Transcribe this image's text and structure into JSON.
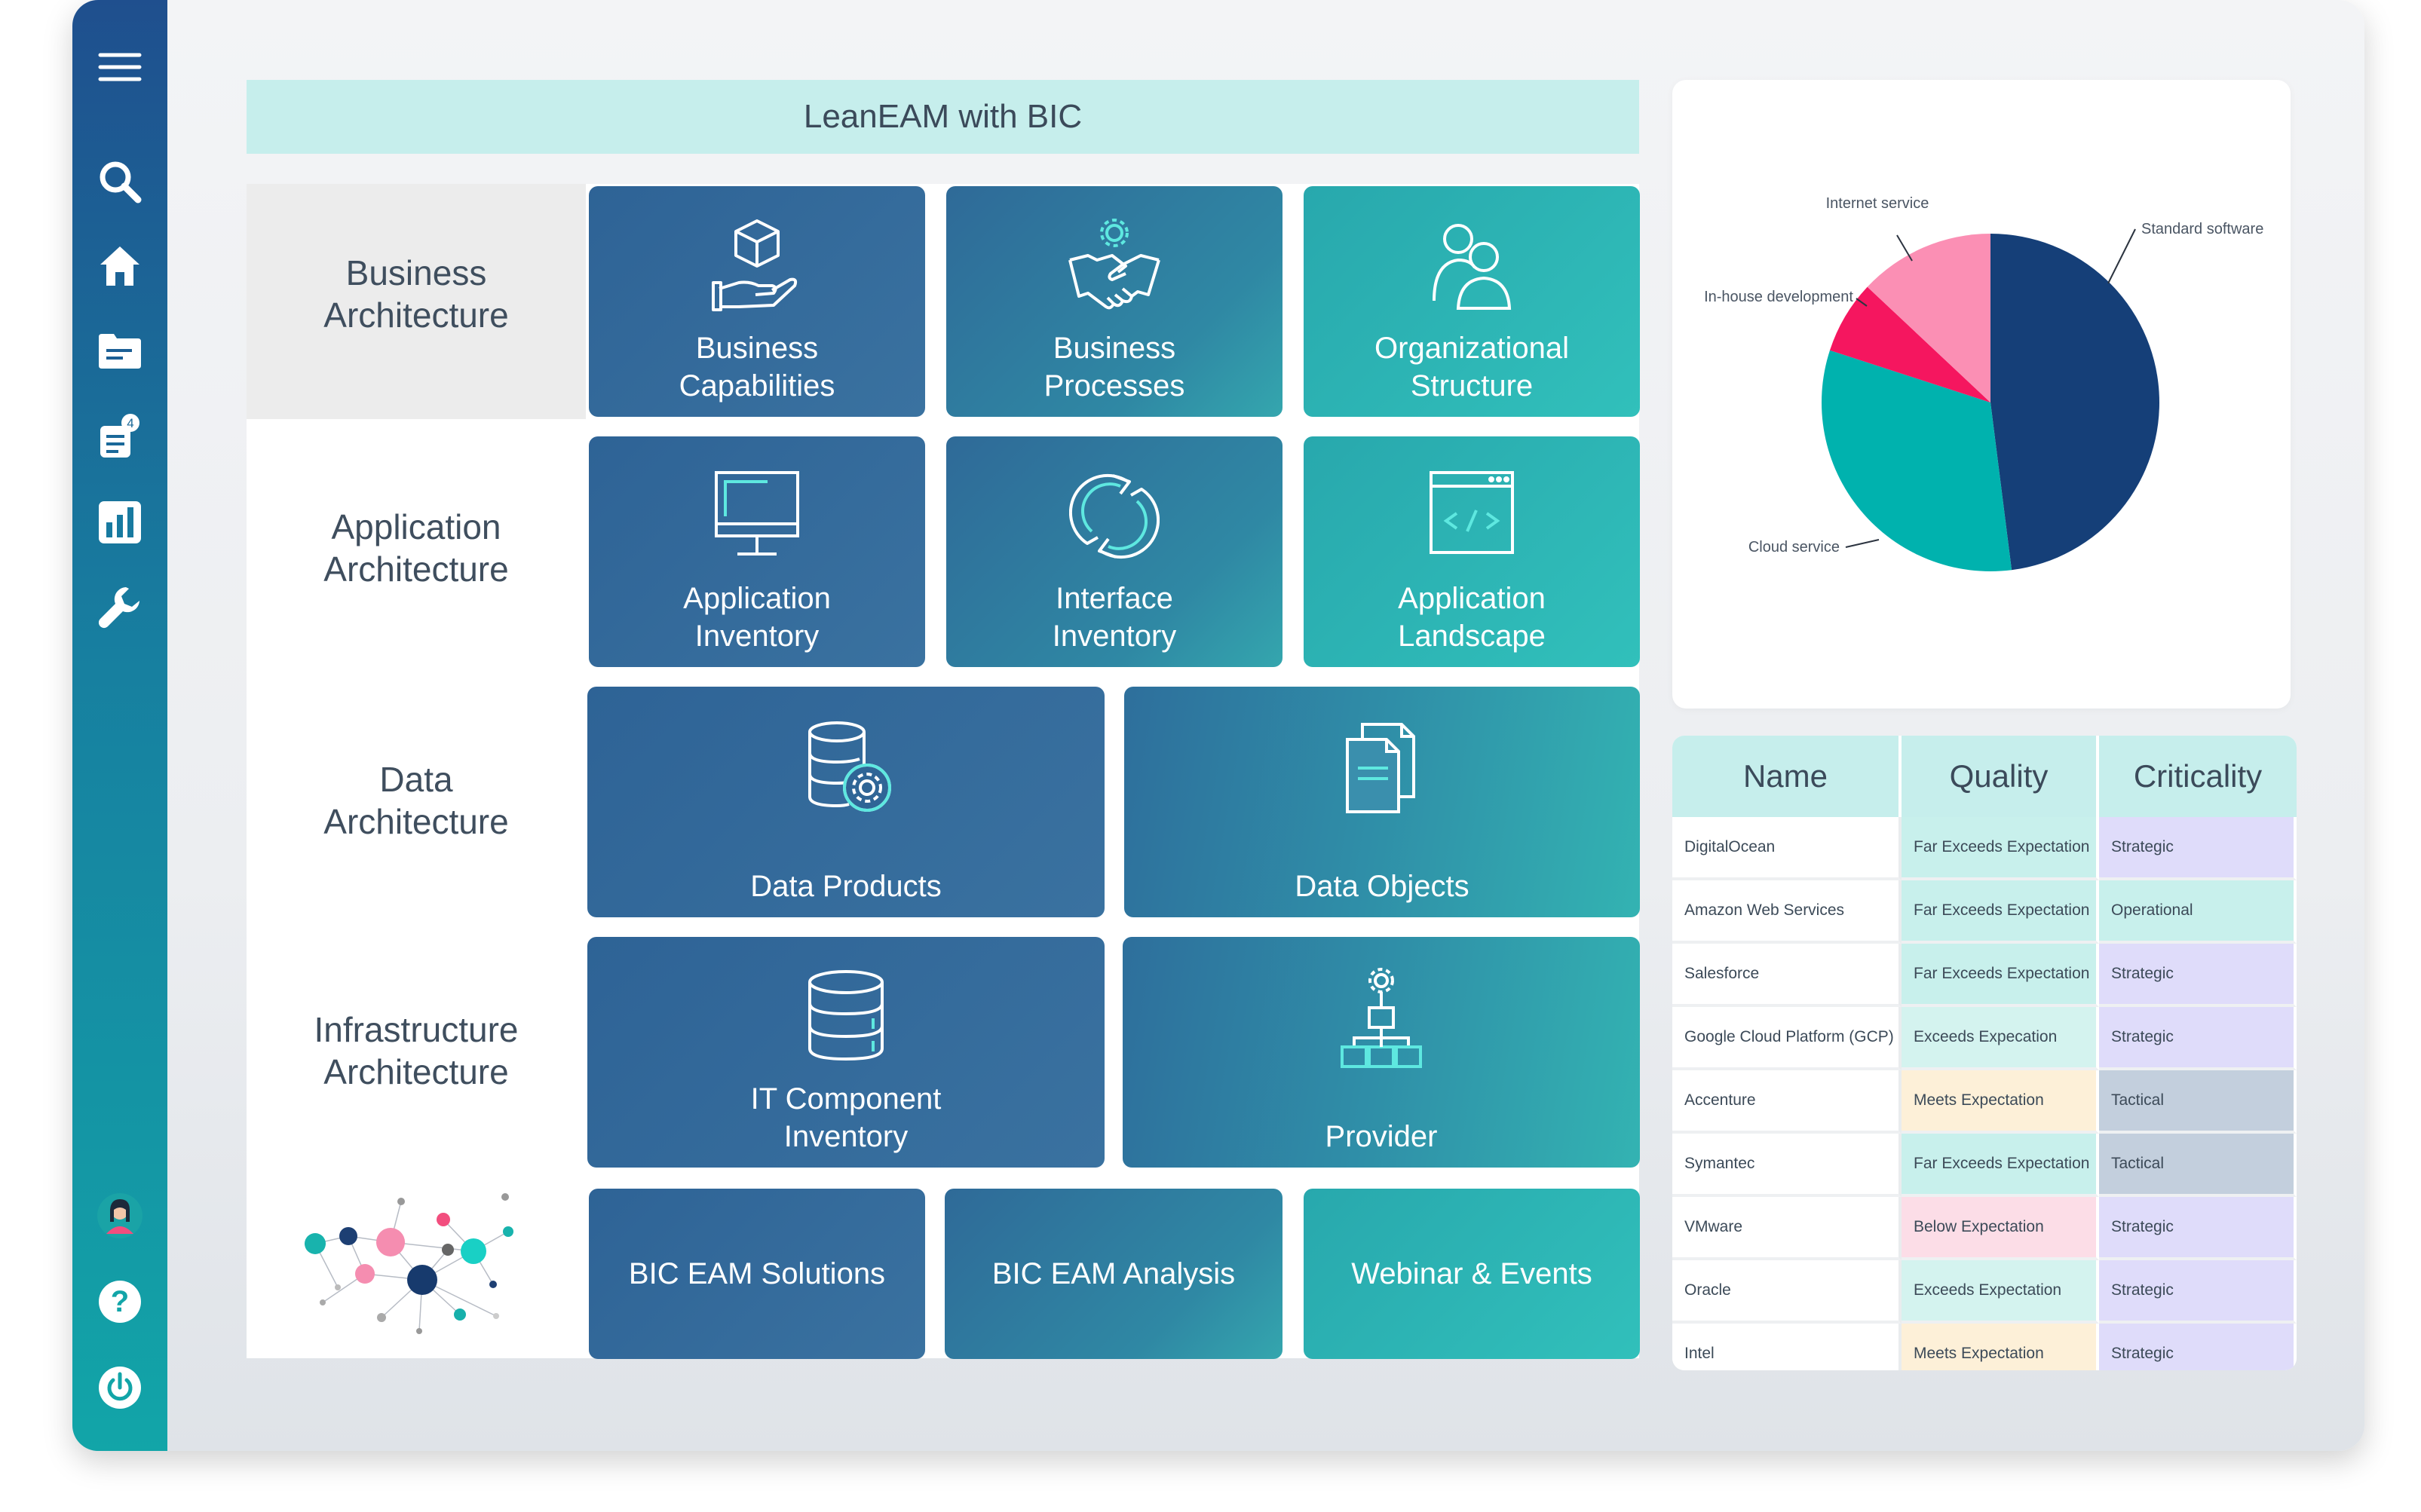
{
  "app": {
    "title": "LeanEAM with BIC"
  },
  "sidebar": {
    "items": [
      {
        "icon": "menu-icon"
      },
      {
        "icon": "search-icon"
      },
      {
        "icon": "home-icon"
      },
      {
        "icon": "folder-icon"
      },
      {
        "icon": "tasks-icon",
        "badge": "4"
      },
      {
        "icon": "bar-chart-icon"
      },
      {
        "icon": "wrench-icon"
      }
    ],
    "bottom": [
      {
        "icon": "avatar"
      },
      {
        "icon": "help-icon"
      },
      {
        "icon": "power-icon"
      }
    ]
  },
  "rows": {
    "business": "Business\nArchitecture",
    "application": "Application\nArchitecture",
    "data": "Data\nArchitecture",
    "infrastructure": "Infrastructure\nArchitecture"
  },
  "tiles": {
    "business_capabilities": "Business\nCapabilities",
    "business_processes": "Business\nProcesses",
    "organizational_structure": "Organizational\nStructure",
    "application_inventory": "Application\nInventory",
    "interface_inventory": "Interface\nInventory",
    "application_landscape": "Application\nLandscape",
    "data_products": "Data Products",
    "data_objects": "Data Objects",
    "it_component_inventory": "IT Component\nInventory",
    "provider": "Provider",
    "bic_eam_solutions": "BIC EAM Solutions",
    "bic_eam_analysis": "BIC EAM Analysis",
    "webinar_events": "Webinar & Events"
  },
  "chart_data": {
    "type": "pie",
    "slices": [
      {
        "label": "Standard software",
        "value": 48,
        "color": "#153f78"
      },
      {
        "label": "Cloud service",
        "value": 32,
        "color": "#00b2ae"
      },
      {
        "label": "In-house development",
        "value": 7,
        "color": "#f5165f"
      },
      {
        "label": "Internet service",
        "value": 13,
        "color": "#fb8fb4"
      }
    ]
  },
  "table": {
    "headers": [
      "Name",
      "Quality",
      "Criticality"
    ],
    "rows": [
      {
        "name": "DigitalOcean",
        "quality": "Far Exceeds Expectation",
        "criticality": "Strategic"
      },
      {
        "name": "Amazon Web Services",
        "quality": "Far Exceeds Expectation",
        "criticality": "Operational"
      },
      {
        "name": "Salesforce",
        "quality": "Far Exceeds Expectation",
        "criticality": "Strategic"
      },
      {
        "name": "Google Cloud Platform (GCP)",
        "quality": "Exceeds Expecation",
        "criticality": "Strategic"
      },
      {
        "name": "Accenture",
        "quality": "Meets Expectation",
        "criticality": "Tactical"
      },
      {
        "name": "Symantec",
        "quality": "Far Exceeds Expectation",
        "criticality": "Tactical"
      },
      {
        "name": "VMware",
        "quality": "Below Expectation",
        "criticality": "Strategic"
      },
      {
        "name": "Oracle",
        "quality": "Exceeds Expectation",
        "criticality": "Strategic"
      },
      {
        "name": "Intel",
        "quality": "Meets Expectation",
        "criticality": "Strategic"
      }
    ]
  }
}
